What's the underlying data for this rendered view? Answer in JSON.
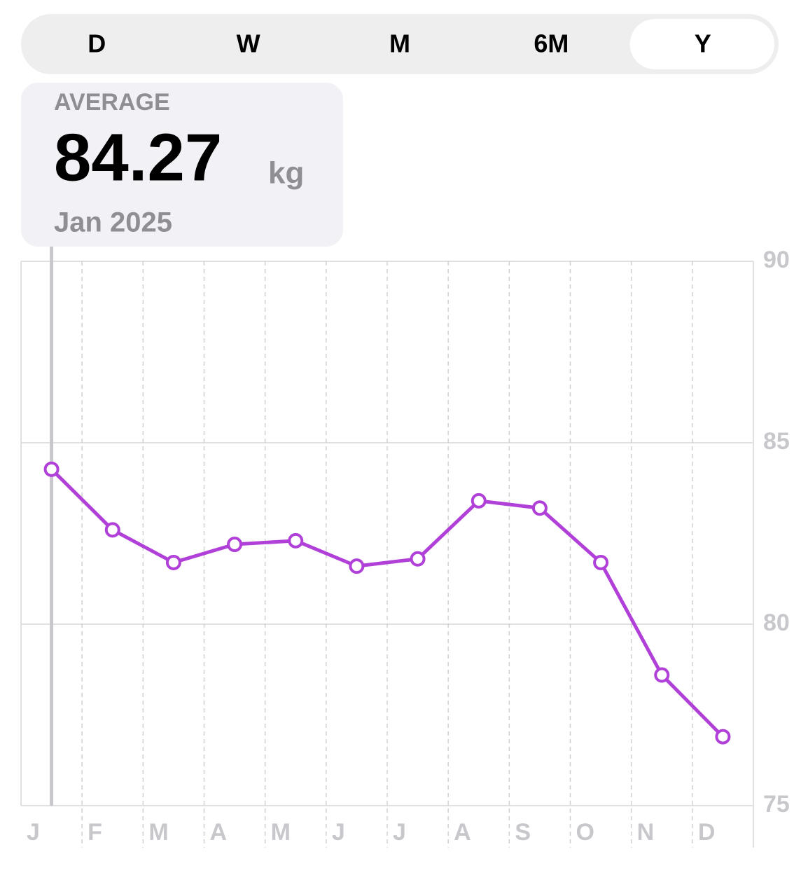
{
  "tabs": {
    "items": [
      "D",
      "W",
      "M",
      "6M",
      "Y"
    ],
    "selected": 4
  },
  "callout": {
    "label": "AVERAGE",
    "unit": "kg",
    "date": "Jan 2025"
  },
  "chart_data": {
    "type": "line",
    "categories": [
      "J",
      "F",
      "M",
      "A",
      "M",
      "J",
      "J",
      "A",
      "S",
      "O",
      "N",
      "D"
    ],
    "values": [
      84.27,
      82.6,
      81.7,
      82.2,
      82.3,
      81.6,
      81.8,
      83.4,
      83.2,
      81.7,
      78.6,
      76.9
    ],
    "color": "#b040d8",
    "ylim": [
      75,
      90
    ],
    "yticks": [
      75,
      80,
      85,
      90
    ],
    "grid": true,
    "selected": 0
  }
}
